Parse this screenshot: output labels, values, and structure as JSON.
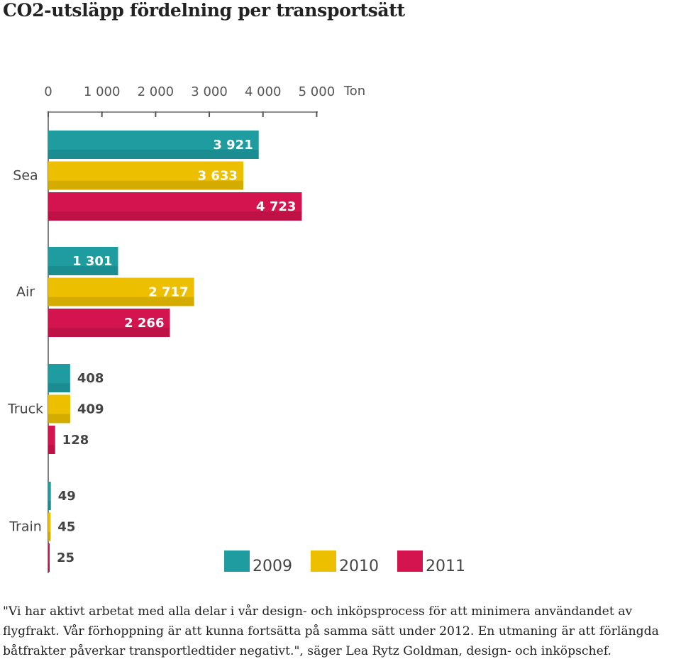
{
  "page": {
    "title": "CO2-utsläpp fördelning per transportsätt",
    "quote": "\"Vi har aktivt arbetat med alla delar i vår design- och inköpsprocess för att minimera användandet av flygfrakt. Vår förhoppning är att kunna fortsätta på samma sätt under 2012. En utmaning är att förlängda båtfrakter påverkar transportledtider negativt.\", säger Lea Rytz Goldman, design- och inköpschef."
  },
  "chart_data": {
    "type": "bar",
    "orientation": "horizontal",
    "title": "",
    "xlabel": "Ton",
    "ylabel": "",
    "xlim": [
      0,
      5000
    ],
    "x_ticks": [
      0,
      1000,
      2000,
      3000,
      4000,
      5000
    ],
    "x_tick_labels": [
      "0",
      "1 000",
      "2 000",
      "3 000",
      "4 000",
      "5 000"
    ],
    "axis_unit": "Ton",
    "categories": [
      "Sea",
      "Air",
      "Truck",
      "Train"
    ],
    "series": [
      {
        "name": "2009",
        "color": "#1f9ca0",
        "values": [
          3921,
          1301,
          408,
          49
        ],
        "labels": [
          "3 921",
          "1 301",
          "408",
          "49"
        ]
      },
      {
        "name": "2010",
        "color": "#ecc000",
        "values": [
          3633,
          2717,
          409,
          45
        ],
        "labels": [
          "3 633",
          "2 717",
          "409",
          "45"
        ]
      },
      {
        "name": "2011",
        "color": "#d4144e",
        "values": [
          4723,
          2266,
          128,
          25
        ],
        "labels": [
          "4 723",
          "2 266",
          "128",
          "25"
        ]
      }
    ],
    "legend_position": "bottom-right",
    "grid": false
  }
}
